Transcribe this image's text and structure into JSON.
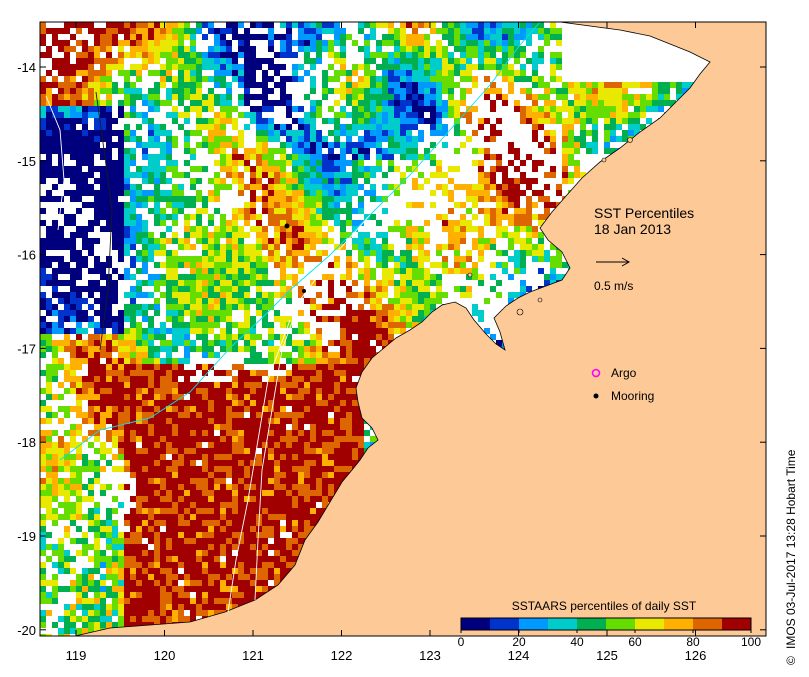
{
  "map": {
    "title_line1": "SST Percentiles",
    "title_line2": "18 Jan 2013",
    "velocity_label": "0.5 m/s",
    "land_color": "#fcc997",
    "ocean_nodata_color": "#ffffff",
    "x_ticks": [
      "119",
      "120",
      "121",
      "122",
      "123",
      "124",
      "125",
      "126"
    ],
    "y_ticks": [
      "-14",
      "-15",
      "-16",
      "-17",
      "-18",
      "-19",
      "-20"
    ],
    "legend": {
      "argo_label": "Argo",
      "mooring_label": "Mooring",
      "argo_color": "#ff00ff",
      "mooring_color": "#000000"
    },
    "colorbar": {
      "title": "SSTAARS percentiles of daily SST",
      "tick_labels": [
        "0",
        "20",
        "40",
        "60",
        "80",
        "100"
      ],
      "colors": [
        "#00007f",
        "#0033cc",
        "#0099ff",
        "#00cccc",
        "#00b050",
        "#66dd00",
        "#e8e800",
        "#ffb000",
        "#dd6600",
        "#a00000"
      ]
    },
    "credit": "IMOS 03-Jul-2017 13:28 Hobart Time",
    "copyright_symbol": "©"
  }
}
